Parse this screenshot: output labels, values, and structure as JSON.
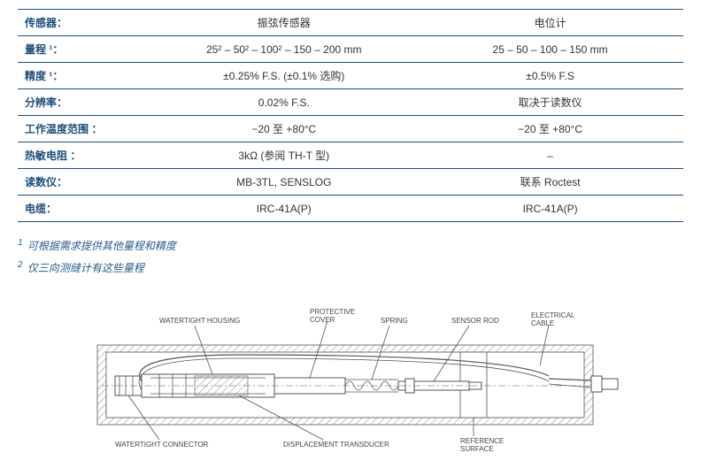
{
  "table": {
    "header_color": "#1f4e79",
    "border_color": "#1f4e79",
    "columns": [
      "传感器：",
      "振弦传感器",
      "电位计"
    ],
    "rows": [
      {
        "label": "量程 ¹：",
        "c1": "25² – 50² – 100² – 150 – 200 mm",
        "c2": "25 – 50 – 100 – 150 mm"
      },
      {
        "label": "精度 ¹：",
        "c1": "±0.25% F.S. (±0.1% 选购)",
        "c2": "±0.5% F.S"
      },
      {
        "label": "分辨率：",
        "c1": "0.02% F.S.",
        "c2": "取决于读数仪"
      },
      {
        "label": "工作温度范围 ：",
        "c1": "−20 至 +80°C",
        "c2": "−20 至 +80°C"
      },
      {
        "label": "热敏电阻 ：",
        "c1": "3kΩ (参阅 TH-T 型)",
        "c2": "–"
      },
      {
        "label": "读数仪：",
        "c1": "MB-3TL, SENSLOG",
        "c2": "联系 Roctest"
      },
      {
        "label": "电缆：",
        "c1": "IRC-41A(P)",
        "c2": "IRC-41A(P)"
      }
    ]
  },
  "notes": [
    "可根据需求提供其他量程和精度",
    "仅三向测缝计有这些量程"
  ],
  "diagram": {
    "labels": {
      "watertight_housing": "WATERTIGHT HOUSING",
      "protective_cover": "PROTECTIVE COVER",
      "spring": "SPRING",
      "sensor_rod": "SENSOR ROD",
      "electrical_cable": "ELECTRICAL CABLE",
      "watertight_connector": "WATERTIGHT CONNECTOR",
      "displacement_transducer": "DISPLACEMENT TRANSDUCER",
      "reference_surface": "REFERENCE SURFACE"
    },
    "colors": {
      "line": "#555555",
      "text": "#444444",
      "background": "#ffffff"
    }
  }
}
